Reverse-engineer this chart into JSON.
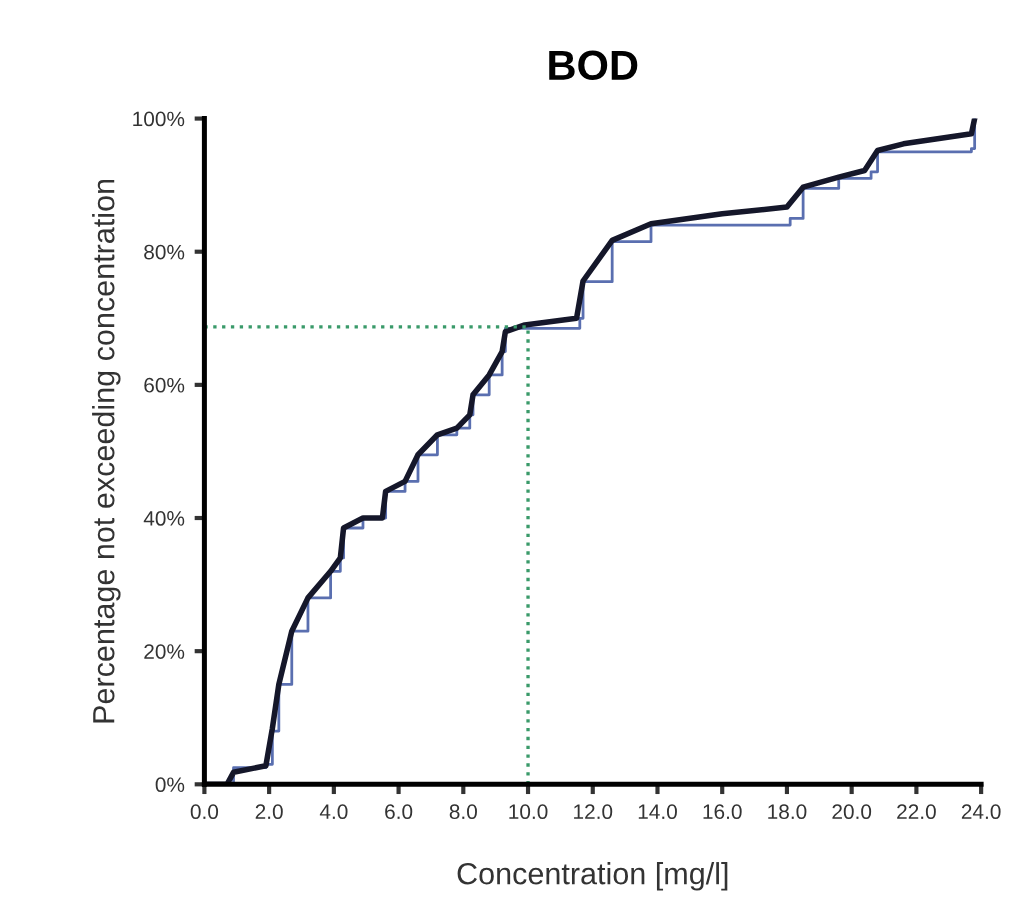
{
  "chart_data": {
    "type": "line",
    "title": "BOD",
    "xlabel": "Concentration [mg/l]",
    "ylabel": "Percentage not exceeding concentration",
    "xlim": [
      0,
      24
    ],
    "ylim": [
      0,
      100
    ],
    "xticks": [
      {
        "value": 0,
        "label": "0.0"
      },
      {
        "value": 2,
        "label": "2.0"
      },
      {
        "value": 4,
        "label": "4.0"
      },
      {
        "value": 6,
        "label": "6.0"
      },
      {
        "value": 8,
        "label": "8.0"
      },
      {
        "value": 10,
        "label": "10.0"
      },
      {
        "value": 12,
        "label": "12.0"
      },
      {
        "value": 14,
        "label": "14.0"
      },
      {
        "value": 16,
        "label": "16.0"
      },
      {
        "value": 18,
        "label": "18.0"
      },
      {
        "value": 20,
        "label": "20.0"
      },
      {
        "value": 22,
        "label": "22.0"
      },
      {
        "value": 24,
        "label": "24.0"
      }
    ],
    "yticks": [
      {
        "value": 0,
        "label": "0%"
      },
      {
        "value": 20,
        "label": "20%"
      },
      {
        "value": 40,
        "label": "40%"
      },
      {
        "value": 60,
        "label": "60%"
      },
      {
        "value": 80,
        "label": "80%"
      },
      {
        "value": 100,
        "label": "100%"
      }
    ],
    "series": [
      {
        "type": "step",
        "color": "#5a6fb0",
        "x": [
          0,
          0.9,
          1.9,
          2.1,
          2.3,
          2.7,
          3.2,
          3.9,
          4.2,
          4.3,
          4.9,
          5.6,
          6.2,
          6.6,
          7.2,
          7.8,
          8.2,
          8.3,
          8.8,
          9.2,
          9.3,
          11.6,
          11.7,
          12.6,
          13.8,
          18.1,
          18.5,
          19.6,
          20.6,
          20.8,
          23.7,
          23.8
        ],
        "values": [
          0,
          2.5,
          3,
          8,
          15,
          23,
          28,
          32,
          34,
          38.5,
          40,
          44,
          45.5,
          49.5,
          52.5,
          53.5,
          55.5,
          58.5,
          61.5,
          65,
          68.5,
          70,
          75.5,
          81.5,
          84,
          85,
          89.5,
          91,
          92,
          95,
          95.5,
          100
        ]
      },
      {
        "color": "#15172a",
        "x": [
          0,
          0.7,
          0.9,
          1.9,
          2.1,
          2.3,
          2.7,
          3.2,
          3.9,
          4.2,
          4.3,
          4.9,
          5.5,
          5.6,
          6.2,
          6.6,
          7.2,
          7.8,
          8.2,
          8.3,
          8.8,
          9.2,
          9.3,
          9.9,
          11.5,
          11.7,
          12.6,
          13.8,
          16,
          18,
          18.5,
          19.6,
          20.4,
          20.8,
          21.6,
          23.7,
          23.8
        ],
        "values": [
          0,
          0,
          1.8,
          2.8,
          8.4,
          15,
          23,
          28,
          32,
          34,
          38.5,
          40,
          40,
          44,
          45.5,
          49.5,
          52.5,
          53.5,
          55.5,
          58.5,
          61.5,
          65,
          68,
          69,
          70,
          75.6,
          81.7,
          84.2,
          85.7,
          86.7,
          89.7,
          91.2,
          92.2,
          95.2,
          96.2,
          97.7,
          100
        ]
      }
    ],
    "ref_lines": [
      {
        "axis": "y",
        "value": 68.7,
        "color": "#3a9a6a",
        "line_style": "dotted"
      },
      {
        "axis": "x",
        "value": 10,
        "color": "#3a9a6a",
        "line_style": "dotted"
      }
    ],
    "grid": false,
    "legend": false
  }
}
